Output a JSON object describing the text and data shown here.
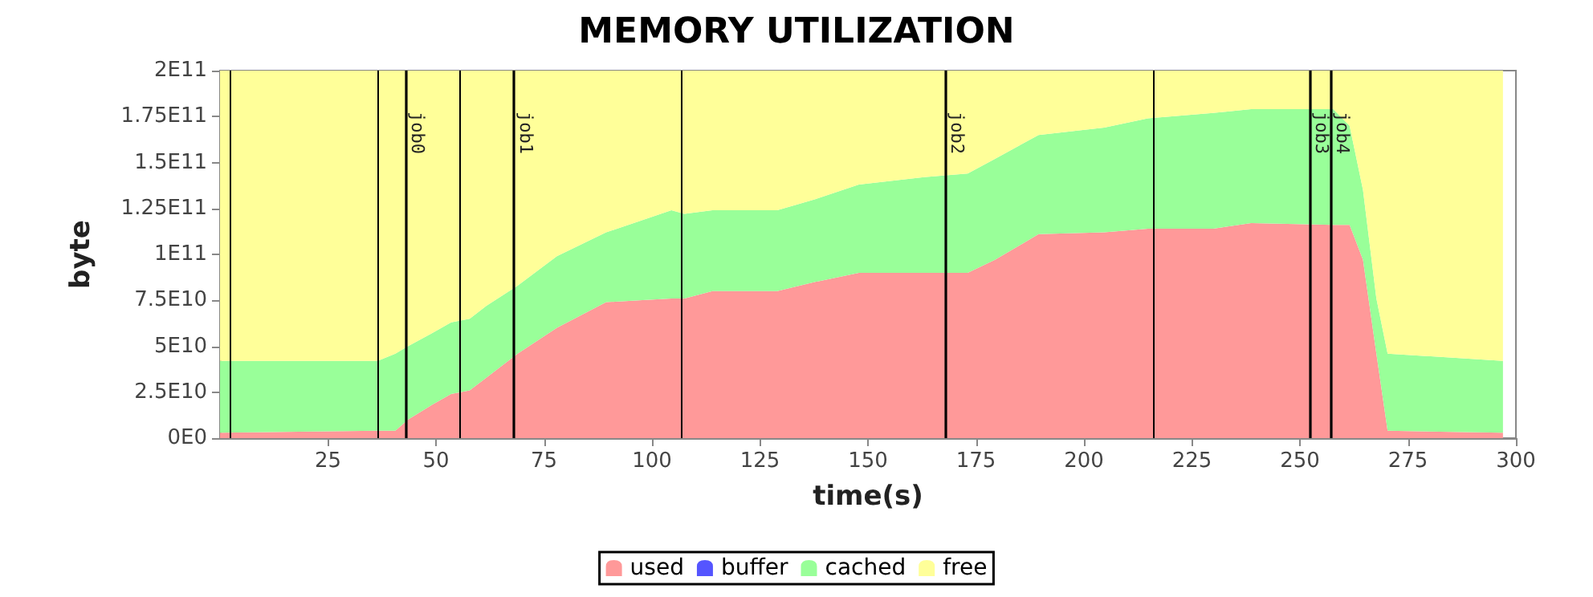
{
  "chart_data": {
    "type": "area",
    "title": "MEMORY UTILIZATION",
    "xlabel": "time(s)",
    "ylabel": "byte",
    "stacked": true,
    "x": [
      0,
      36.5,
      40.6,
      43.5,
      49,
      53.5,
      57.8,
      61.7,
      68.9,
      78,
      89.4,
      97,
      104.5,
      107.5,
      114,
      129,
      137.8,
      147.9,
      163,
      173.1,
      179.4,
      189.5,
      204.7,
      214.8,
      229.9,
      238.7,
      257.7,
      261.5,
      264.6,
      267.7,
      270.3,
      297
    ],
    "series": [
      {
        "name": "used",
        "color": "#ff9999",
        "values": [
          3000000000.0,
          4000000000.0,
          4000000000.0,
          10000000000.0,
          18000000000.0,
          24000000000.0,
          26000000000.0,
          33000000000.0,
          46000000000.0,
          60000000000.0,
          74000000000.0,
          75000000000.0,
          76000000000.0,
          76000000000.0,
          80000000000.0,
          80000000000.0,
          85000000000.0,
          90000000000.0,
          90000000000.0,
          90000000000.0,
          97000000000.0,
          111000000000.0,
          112000000000.0,
          114000000000.0,
          114000000000.0,
          117000000000.0,
          116000000000.0,
          116000000000.0,
          97000000000.0,
          46000000000.0,
          4000000000.0,
          3000000000.0
        ]
      },
      {
        "name": "buffer",
        "color": "#5555ff",
        "values": [
          null,
          null,
          null,
          null,
          null,
          null,
          null,
          null,
          null,
          null,
          null,
          null,
          null,
          null,
          null,
          null,
          null,
          null,
          null,
          null,
          null,
          null,
          null,
          null,
          null,
          null,
          null,
          null,
          null,
          null,
          null,
          null
        ]
      },
      {
        "name": "cached",
        "color": "#99ff99",
        "values": [
          39000000000.0,
          38000000000.0,
          42000000000.0,
          40000000000.0,
          39000000000.0,
          39000000000.0,
          39000000000.0,
          39000000000.0,
          37000000000.0,
          39000000000.0,
          38000000000.0,
          43000000000.0,
          48000000000.0,
          46000000000.0,
          44000000000.0,
          44000000000.0,
          45000000000.0,
          48000000000.0,
          52000000000.0,
          54000000000.0,
          55000000000.0,
          54000000000.0,
          57000000000.0,
          60000000000.0,
          63000000000.0,
          62000000000.0,
          63000000000.0,
          54000000000.0,
          38000000000.0,
          30000000000.0,
          42000000000.0,
          39000000000.0
        ]
      },
      {
        "name": "free",
        "color": "#ffff99",
        "values": [
          158000000000.0,
          158000000000.0,
          154000000000.0,
          150000000000.0,
          143000000000.0,
          137000000000.0,
          135000000000.0,
          128000000000.0,
          117000000000.0,
          101000000000.0,
          88000000000.0,
          82000000000.0,
          76000000000.0,
          78000000000.0,
          76000000000.0,
          76000000000.0,
          70000000000.0,
          62000000000.0,
          58000000000.0,
          56000000000.0,
          48000000000.0,
          35000000000.0,
          31000000000.0,
          26000000000.0,
          23000000000.0,
          21000000000.0,
          21000000000.0,
          30000000000.0,
          65000000000.0,
          124000000000.0,
          154000000000.0,
          158000000000.0
        ]
      }
    ],
    "xlim": [
      0,
      300
    ],
    "xticks": [
      25,
      50,
      75,
      100,
      125,
      150,
      175,
      200,
      225,
      250,
      275,
      300
    ],
    "ylim": [
      0,
      200000000000.0
    ],
    "yticks": [
      {
        "value": 0,
        "label": "0E0"
      },
      {
        "value": 25000000000.0,
        "label": "2.5E10"
      },
      {
        "value": 50000000000.0,
        "label": "5E10"
      },
      {
        "value": 75000000000.0,
        "label": "7.5E10"
      },
      {
        "value": 100000000000.0,
        "label": "1E11"
      },
      {
        "value": 125000000000.0,
        "label": "1.25E11"
      },
      {
        "value": 150000000000.0,
        "label": "1.5E11"
      },
      {
        "value": 175000000000.0,
        "label": "1.75E11"
      },
      {
        "value": 200000000000.0,
        "label": "2E11"
      }
    ],
    "ref_lines": [
      {
        "axis": "x",
        "value": 2.2
      },
      {
        "axis": "x",
        "value": 36.6
      },
      {
        "axis": "x",
        "value": 43,
        "label": "job0"
      },
      {
        "axis": "x",
        "value": 55.3
      },
      {
        "axis": "x",
        "value": 68.1,
        "label": "job1"
      },
      {
        "axis": "x",
        "value": 106.7
      },
      {
        "axis": "x",
        "value": 167.9,
        "label": "job2"
      },
      {
        "axis": "x",
        "value": 215.9
      },
      {
        "axis": "x",
        "value": 252.3,
        "label": "job3"
      },
      {
        "axis": "x",
        "value": 257.1,
        "label": "job4"
      }
    ],
    "grid": false,
    "legend": "bottom"
  }
}
